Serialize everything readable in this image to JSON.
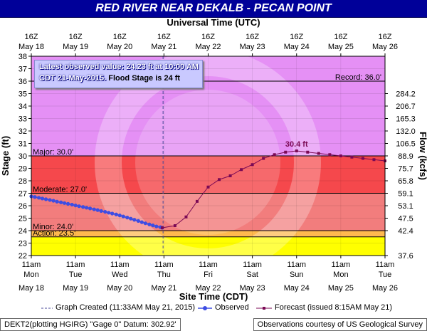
{
  "title": "RED RIVER NEAR DEKALB - PECAN POINT",
  "top_axis_title": "Universal Time (UTC)",
  "bottom_axis_title": "Site Time (CDT)",
  "callout": {
    "line1": "Latest observed value: 24.23 ft at 10:00 AM",
    "line2a": "CDT 21-May-2015.",
    "line2b": "Flood Stage is 24 ft"
  },
  "legend": {
    "graph_created": "Graph Created (11:33AM May 21, 2015)",
    "observed": "Observed",
    "forecast": "Forecast (issued 8:15AM May 21)"
  },
  "footer": {
    "left": "DEKT2(plotting HGIRG) \"Gage 0\" Datum: 302.92'",
    "right": "Observations courtesy of US Geological Survey"
  },
  "colors": {
    "title_bar": "#000099",
    "record_zone": "#e590f5",
    "major_zone": "#f5484c",
    "moderate_zone": "#f27d7d",
    "minor_zone": "#ffb94f",
    "action_zone": "#ffff00",
    "observed": "#3d4de3",
    "forecast": "#7b0a55",
    "graph_created_line": "#4a4a9a"
  },
  "chart_data": {
    "type": "line",
    "x_unit": "days since 11am CDT May 18",
    "ylabel_left": "Stage (ft)",
    "ylabel_right": "Flow (kcfs)",
    "ylim": [
      22,
      38
    ],
    "xlim": [
      0,
      8
    ],
    "left_ticks": [
      22,
      23,
      24,
      25,
      26,
      27,
      28,
      29,
      30,
      31,
      32,
      33,
      34,
      35,
      36,
      37,
      38
    ],
    "right_ticks": [
      {
        "stage": 22.0,
        "label": "37.6"
      },
      {
        "stage": 24.0,
        "label": "42.4"
      },
      {
        "stage": 25.0,
        "label": "47.5"
      },
      {
        "stage": 26.0,
        "label": "53.1"
      },
      {
        "stage": 27.0,
        "label": "59.1"
      },
      {
        "stage": 28.0,
        "label": "65.8"
      },
      {
        "stage": 29.0,
        "label": "75.7"
      },
      {
        "stage": 30.0,
        "label": "88.9"
      },
      {
        "stage": 31.0,
        "label": "106.5"
      },
      {
        "stage": 32.0,
        "label": "132.0"
      },
      {
        "stage": 33.0,
        "label": "165.3"
      },
      {
        "stage": 34.0,
        "label": "206.7"
      },
      {
        "stage": 35.0,
        "label": "284.2"
      }
    ],
    "top_ticks": [
      {
        "x": 0,
        "t1": "16Z",
        "t2": "May 18"
      },
      {
        "x": 1,
        "t1": "16Z",
        "t2": "May 19"
      },
      {
        "x": 2,
        "t1": "16Z",
        "t2": "May 20"
      },
      {
        "x": 3,
        "t1": "16Z",
        "t2": "May 21"
      },
      {
        "x": 4,
        "t1": "16Z",
        "t2": "May 22"
      },
      {
        "x": 5,
        "t1": "16Z",
        "t2": "May 23"
      },
      {
        "x": 6,
        "t1": "16Z",
        "t2": "May 24"
      },
      {
        "x": 7,
        "t1": "16Z",
        "t2": "May 25"
      },
      {
        "x": 8,
        "t1": "16Z",
        "t2": "May 26"
      }
    ],
    "bottom_ticks": [
      {
        "x": 0,
        "t1": "11am",
        "t2": "Mon",
        "t3": "May 18"
      },
      {
        "x": 1,
        "t1": "11am",
        "t2": "Tue",
        "t3": "May 19"
      },
      {
        "x": 2,
        "t1": "11am",
        "t2": "Wed",
        "t3": "May 20"
      },
      {
        "x": 3,
        "t1": "11am",
        "t2": "Thu",
        "t3": "May 21"
      },
      {
        "x": 4,
        "t1": "11am",
        "t2": "Fri",
        "t3": "May 22"
      },
      {
        "x": 5,
        "t1": "11am",
        "t2": "Sat",
        "t3": "May 23"
      },
      {
        "x": 6,
        "t1": "11am",
        "t2": "Sun",
        "t3": "May 24"
      },
      {
        "x": 7,
        "t1": "11am",
        "t2": "Mon",
        "t3": "May 25"
      },
      {
        "x": 8,
        "t1": "11am",
        "t2": "Tue",
        "t3": "May 26"
      }
    ],
    "flood_categories": [
      {
        "name": "Record",
        "label": "Record: 36.0'",
        "value": 36.0
      },
      {
        "name": "Major",
        "label": "Major: 30.0'",
        "value": 30.0
      },
      {
        "name": "Moderate",
        "label": "Moderate: 27.0'",
        "value": 27.0
      },
      {
        "name": "Minor",
        "label": "Minor: 24.0'",
        "value": 24.0
      },
      {
        "name": "Action",
        "label": "Action: 23.5'",
        "value": 23.5
      }
    ],
    "graph_created_x": 2.98,
    "crest_label": "30.4 ft",
    "crest": {
      "x": 6.0,
      "y": 30.4
    },
    "series": [
      {
        "name": "Observed",
        "points": [
          [
            0.0,
            26.75
          ],
          [
            0.08,
            26.7
          ],
          [
            0.17,
            26.64
          ],
          [
            0.25,
            26.58
          ],
          [
            0.33,
            26.52
          ],
          [
            0.42,
            26.46
          ],
          [
            0.5,
            26.4
          ],
          [
            0.58,
            26.33
          ],
          [
            0.67,
            26.27
          ],
          [
            0.75,
            26.21
          ],
          [
            0.83,
            26.15
          ],
          [
            0.92,
            26.09
          ],
          [
            1.0,
            26.02
          ],
          [
            1.08,
            25.96
          ],
          [
            1.17,
            25.9
          ],
          [
            1.25,
            25.84
          ],
          [
            1.33,
            25.78
          ],
          [
            1.42,
            25.71
          ],
          [
            1.5,
            25.65
          ],
          [
            1.58,
            25.58
          ],
          [
            1.67,
            25.51
          ],
          [
            1.75,
            25.44
          ],
          [
            1.83,
            25.37
          ],
          [
            1.92,
            25.3
          ],
          [
            2.0,
            25.22
          ],
          [
            2.08,
            25.14
          ],
          [
            2.17,
            25.05
          ],
          [
            2.25,
            24.96
          ],
          [
            2.33,
            24.87
          ],
          [
            2.42,
            24.78
          ],
          [
            2.5,
            24.68
          ],
          [
            2.58,
            24.59
          ],
          [
            2.67,
            24.5
          ],
          [
            2.75,
            24.42
          ],
          [
            2.83,
            24.34
          ],
          [
            2.92,
            24.28
          ],
          [
            2.96,
            24.23
          ]
        ]
      },
      {
        "name": "Forecast",
        "points": [
          [
            2.96,
            24.23
          ],
          [
            3.25,
            24.4
          ],
          [
            3.5,
            25.1
          ],
          [
            3.75,
            26.35
          ],
          [
            4.0,
            27.5
          ],
          [
            4.25,
            28.1
          ],
          [
            4.5,
            28.4
          ],
          [
            4.75,
            28.9
          ],
          [
            5.0,
            29.3
          ],
          [
            5.25,
            29.8
          ],
          [
            5.5,
            30.1
          ],
          [
            5.75,
            30.3
          ],
          [
            6.0,
            30.4
          ],
          [
            6.25,
            30.3
          ],
          [
            6.5,
            30.2
          ],
          [
            6.75,
            30.1
          ],
          [
            7.0,
            30.0
          ],
          [
            7.25,
            29.9
          ],
          [
            7.5,
            29.8
          ],
          [
            7.75,
            29.7
          ],
          [
            8.0,
            29.6
          ]
        ]
      }
    ]
  }
}
